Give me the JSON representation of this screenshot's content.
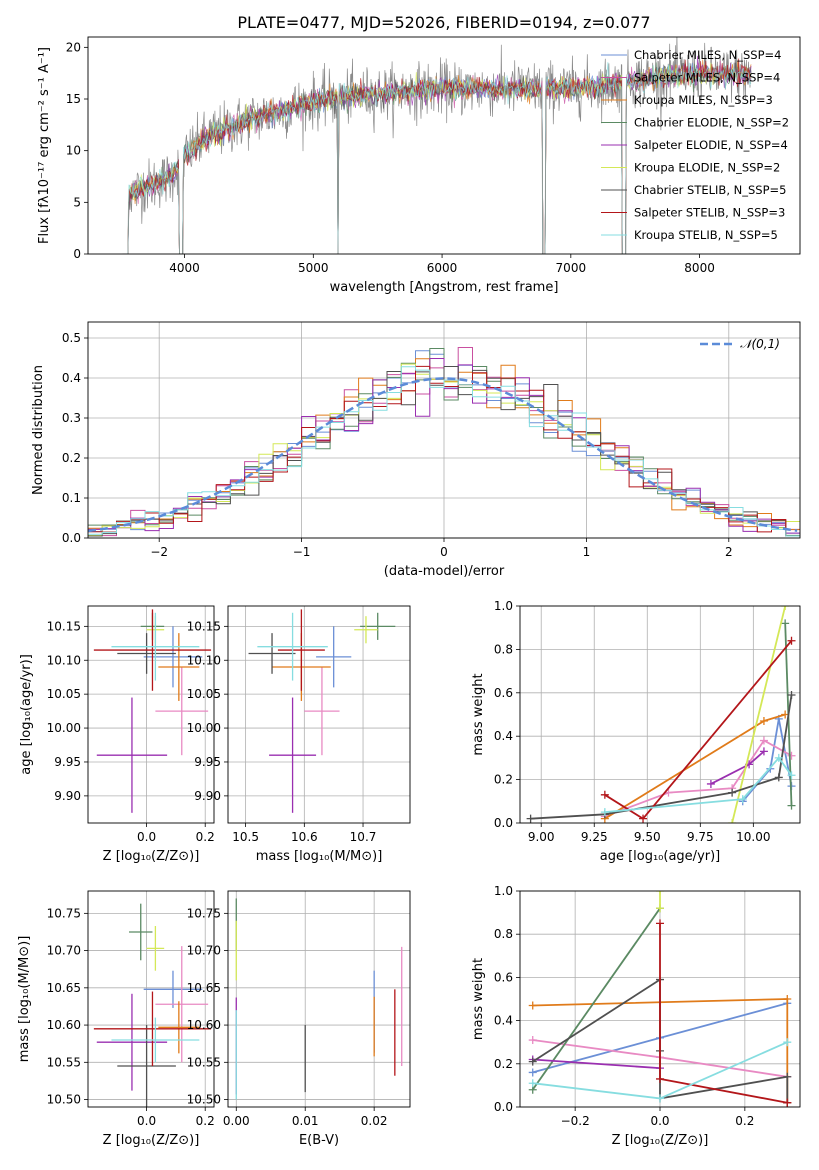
{
  "figure": {
    "title": "PLATE=0477, MJD=52026, FIBERID=0194, z=0.077"
  },
  "chart_data": [
    {
      "id": "spectrum",
      "type": "line",
      "xlabel": "wavelength [Angstrom, rest frame]",
      "ylabel": "Flux [fλ10⁻¹⁷ erg cm⁻² s⁻¹ A⁻¹]",
      "xlim": [
        3250,
        8780
      ],
      "ylim": [
        0,
        21
      ],
      "xticks": [
        4000,
        5000,
        6000,
        7000,
        8000
      ],
      "yticks": [
        0,
        5,
        10,
        15,
        20
      ],
      "legend_position": "top-right",
      "grid": false,
      "series": [
        {
          "name": "Chabrier MILES, N_SSP=4",
          "color": "#6b8fd6"
        },
        {
          "name": "Salpeter MILES, N_SSP=4",
          "color": "#c94fa0"
        },
        {
          "name": "Kroupa MILES, N_SSP=3",
          "color": "#e07b1a"
        },
        {
          "name": "Chabrier ELODIE, N_SSP=2",
          "color": "#5b8a63"
        },
        {
          "name": "Salpeter ELODIE, N_SSP=4",
          "color": "#9a2fb0"
        },
        {
          "name": "Kroupa ELODIE, N_SSP=2",
          "color": "#d4e857"
        },
        {
          "name": "Chabrier STELIB, N_SSP=5",
          "color": "#505050"
        },
        {
          "name": "Salpeter STELIB, N_SSP=3",
          "color": "#b3161a"
        },
        {
          "name": "Kroupa STELIB, N_SSP=5",
          "color": "#86dde0"
        }
      ],
      "continuum_anchors": [
        [
          3520,
          5.5
        ],
        [
          3700,
          6.5
        ],
        [
          3900,
          7.5
        ],
        [
          4000,
          9.5
        ],
        [
          4200,
          11.5
        ],
        [
          4500,
          13.0
        ],
        [
          4800,
          14.0
        ],
        [
          5000,
          14.8
        ],
        [
          5300,
          15.3
        ],
        [
          5600,
          15.6
        ],
        [
          6000,
          16.0
        ],
        [
          6500,
          16.0
        ],
        [
          7000,
          16.0
        ],
        [
          7400,
          16.6
        ],
        [
          7700,
          17.2
        ],
        [
          8000,
          17.4
        ],
        [
          8400,
          17.3
        ]
      ],
      "data_dropouts": [
        [
          3500,
          3560
        ],
        [
          3960,
          3990
        ],
        [
          5190,
          5195
        ],
        [
          6780,
          6800
        ],
        [
          7400,
          7430
        ]
      ]
    },
    {
      "id": "residuals",
      "type": "histogram",
      "xlabel": "(data-model)/error",
      "ylabel": "Normed distribution",
      "xlim": [
        -2.5,
        2.5
      ],
      "ylim": [
        0,
        0.54
      ],
      "xticks": [
        -2,
        -1,
        0,
        1,
        2
      ],
      "yticks": [
        0.0,
        0.1,
        0.2,
        0.3,
        0.4,
        0.5
      ],
      "legend_position": "top-right",
      "legend": [
        "𝒩(0,1)"
      ],
      "grid": true,
      "bin_width": 0.1,
      "reference_curve": {
        "name": "N(0,1)",
        "color": "#5b8bd8",
        "mean": 0,
        "sd": 1
      },
      "histogram_colors": [
        "#6b8fd6",
        "#c94fa0",
        "#e07b1a",
        "#5b8a63",
        "#9a2fb0",
        "#d4e857",
        "#505050",
        "#b3161a",
        "#86dde0"
      ]
    },
    {
      "id": "z-vs-age",
      "type": "errorbar",
      "xlabel": "Z [log₁₀(Z/Z⊙)]",
      "ylabel": "age  [log₁₀(age/yr)]",
      "xlim": [
        -0.2,
        0.23
      ],
      "ylim": [
        9.86,
        10.18
      ],
      "xticks": [
        0.0,
        0.2
      ],
      "yticks": [
        9.9,
        9.95,
        10.0,
        10.05,
        10.1,
        10.15
      ],
      "grid": true,
      "points": [
        {
          "x": 0.09,
          "y": 10.105,
          "xerr": 0.1,
          "yerr": 0.045,
          "color": "#6b8fd6"
        },
        {
          "x": 0.12,
          "y": 10.025,
          "xerr": 0.09,
          "yerr": 0.065,
          "color": "#e88ac3"
        },
        {
          "x": 0.11,
          "y": 10.09,
          "xerr": 0.07,
          "yerr": 0.05,
          "color": "#e07b1a"
        },
        {
          "x": 0.02,
          "y": 10.15,
          "xerr": 0.04,
          "yerr": 0.02,
          "color": "#5b8a63"
        },
        {
          "x": -0.05,
          "y": 9.96,
          "xerr": 0.12,
          "yerr": 0.085,
          "color": "#9a2fb0"
        },
        {
          "x": 0.03,
          "y": 10.145,
          "xerr": 0.03,
          "yerr": 0.02,
          "color": "#d4e857"
        },
        {
          "x": 0.0,
          "y": 10.11,
          "xerr": 0.1,
          "yerr": 0.03,
          "color": "#505050"
        },
        {
          "x": 0.02,
          "y": 10.115,
          "xerr": 0.2,
          "yerr": 0.06,
          "color": "#b3161a"
        },
        {
          "x": 0.03,
          "y": 10.12,
          "xerr": 0.15,
          "yerr": 0.05,
          "color": "#86dde0"
        }
      ]
    },
    {
      "id": "mass-vs-age",
      "type": "errorbar",
      "xlabel": "mass [log₁₀(M/M⊙)]",
      "ylabel": "",
      "xlim": [
        10.47,
        10.78
      ],
      "ylim": [
        9.86,
        10.18
      ],
      "xticks": [
        10.5,
        10.6,
        10.7
      ],
      "yticks": [
        9.9,
        9.95,
        10.0,
        10.05,
        10.1,
        10.15
      ],
      "grid": true,
      "points": [
        {
          "x": 10.65,
          "y": 10.105,
          "xerr": 0.03,
          "yerr": 0.045,
          "color": "#6b8fd6"
        },
        {
          "x": 10.63,
          "y": 10.025,
          "xerr": 0.03,
          "yerr": 0.065,
          "color": "#e88ac3"
        },
        {
          "x": 10.595,
          "y": 10.09,
          "xerr": 0.05,
          "yerr": 0.05,
          "color": "#e07b1a"
        },
        {
          "x": 10.725,
          "y": 10.15,
          "xerr": 0.03,
          "yerr": 0.02,
          "color": "#5b8a63"
        },
        {
          "x": 10.58,
          "y": 9.96,
          "xerr": 0.04,
          "yerr": 0.085,
          "color": "#9a2fb0"
        },
        {
          "x": 10.705,
          "y": 10.145,
          "xerr": 0.02,
          "yerr": 0.02,
          "color": "#d4e857"
        },
        {
          "x": 10.545,
          "y": 10.11,
          "xerr": 0.04,
          "yerr": 0.03,
          "color": "#505050"
        },
        {
          "x": 10.595,
          "y": 10.115,
          "xerr": 0.04,
          "yerr": 0.06,
          "color": "#b3161a"
        },
        {
          "x": 10.58,
          "y": 10.12,
          "xerr": 0.06,
          "yerr": 0.05,
          "color": "#86dde0"
        }
      ]
    },
    {
      "id": "age-vs-weight",
      "type": "line",
      "xlabel": "age  [log₁₀(age/yr)]",
      "ylabel": "mass weight",
      "xlim": [
        8.9,
        10.22
      ],
      "ylim": [
        0,
        1.0
      ],
      "xticks": [
        9.0,
        9.25,
        9.5,
        9.75,
        10.0
      ],
      "yticks": [
        0.0,
        0.2,
        0.4,
        0.6,
        0.8,
        1.0
      ],
      "grid": true,
      "series": [
        {
          "name": "Chabrier MILES",
          "color": "#6b8fd6",
          "x": [
            9.95,
            10.08,
            10.12,
            10.18
          ],
          "y": [
            0.1,
            0.25,
            0.48,
            0.17
          ]
        },
        {
          "name": "Salpeter MILES",
          "color": "#e88ac3",
          "x": [
            9.3,
            9.6,
            9.9,
            10.05,
            10.18
          ],
          "y": [
            0.03,
            0.14,
            0.16,
            0.38,
            0.31
          ]
        },
        {
          "name": "Kroupa MILES",
          "color": "#e07b1a",
          "x": [
            9.3,
            10.05,
            10.15
          ],
          "y": [
            0.02,
            0.47,
            0.5
          ]
        },
        {
          "name": "Chabrier ELODIE",
          "color": "#5b8a63",
          "x": [
            10.15,
            10.18
          ],
          "y": [
            0.92,
            0.08
          ]
        },
        {
          "name": "Salpeter ELODIE",
          "color": "#9a2fb0",
          "x": [
            9.8,
            9.98,
            10.05
          ],
          "y": [
            0.18,
            0.27,
            0.33
          ]
        },
        {
          "name": "Kroupa ELODIE",
          "color": "#d4e857",
          "x": [
            9.9,
            10.15
          ],
          "y": [
            0.0,
            1.0
          ]
        },
        {
          "name": "Chabrier STELIB",
          "color": "#505050",
          "x": [
            8.95,
            9.3,
            9.9,
            10.12,
            10.18
          ],
          "y": [
            0.02,
            0.04,
            0.14,
            0.21,
            0.59
          ]
        },
        {
          "name": "Salpeter STELIB",
          "color": "#b3161a",
          "x": [
            9.3,
            9.48,
            10.18
          ],
          "y": [
            0.13,
            0.02,
            0.84
          ]
        },
        {
          "name": "Kroupa STELIB",
          "color": "#86dde0",
          "x": [
            9.3,
            9.95,
            10.12,
            10.18
          ],
          "y": [
            0.05,
            0.11,
            0.3,
            0.22
          ]
        }
      ]
    },
    {
      "id": "z-vs-mass",
      "type": "errorbar",
      "xlabel": "Z [log₁₀(Z/Z⊙)]",
      "ylabel": "mass [log₁₀(M/M⊙)]",
      "xlim": [
        -0.2,
        0.23
      ],
      "ylim": [
        10.49,
        10.78
      ],
      "xticks": [
        0.0,
        0.2
      ],
      "yticks": [
        10.5,
        10.55,
        10.6,
        10.65,
        10.7,
        10.75
      ],
      "grid": true,
      "points": [
        {
          "x": 0.09,
          "y": 10.648,
          "xerr": 0.1,
          "yerr": 0.025,
          "color": "#6b8fd6"
        },
        {
          "x": 0.12,
          "y": 10.628,
          "xerr": 0.09,
          "yerr": 0.078,
          "color": "#e88ac3"
        },
        {
          "x": 0.11,
          "y": 10.597,
          "xerr": 0.07,
          "yerr": 0.035,
          "color": "#e07b1a"
        },
        {
          "x": -0.02,
          "y": 10.725,
          "xerr": 0.04,
          "yerr": 0.038,
          "color": "#5b8a63"
        },
        {
          "x": -0.05,
          "y": 10.577,
          "xerr": 0.12,
          "yerr": 0.065,
          "color": "#9a2fb0"
        },
        {
          "x": 0.03,
          "y": 10.703,
          "xerr": 0.03,
          "yerr": 0.03,
          "color": "#d4e857"
        },
        {
          "x": 0.0,
          "y": 10.545,
          "xerr": 0.1,
          "yerr": 0.055,
          "color": "#505050"
        },
        {
          "x": 0.02,
          "y": 10.595,
          "xerr": 0.2,
          "yerr": 0.05,
          "color": "#b3161a"
        },
        {
          "x": 0.03,
          "y": 10.58,
          "xerr": 0.15,
          "yerr": 0.03,
          "color": "#86dde0"
        }
      ]
    },
    {
      "id": "ebv-vs-mass",
      "type": "errorbar",
      "xlabel": "E(B-V)",
      "ylabel": "",
      "xlim": [
        -0.0012,
        0.0252
      ],
      "ylim": [
        10.49,
        10.78
      ],
      "xticks": [
        0.0,
        0.01,
        0.02
      ],
      "yticks": [
        10.5,
        10.55,
        10.6,
        10.65,
        10.7,
        10.75
      ],
      "grid": true,
      "points": [
        {
          "x": 0.02,
          "y": 10.618,
          "xerr": 0.0,
          "yerr": 0.055,
          "color": "#6b8fd6"
        },
        {
          "x": 0.024,
          "y": 10.625,
          "xerr": 0.0,
          "yerr": 0.08,
          "color": "#e88ac3"
        },
        {
          "x": 0.02,
          "y": 10.598,
          "xerr": 0.0,
          "yerr": 0.04,
          "color": "#e07b1a"
        },
        {
          "x": 0.0,
          "y": 10.735,
          "xerr": 0.0,
          "yerr": 0.035,
          "color": "#5b8a63"
        },
        {
          "x": 0.0,
          "y": 10.572,
          "xerr": 0.0,
          "yerr": 0.065,
          "color": "#9a2fb0"
        },
        {
          "x": 0.0,
          "y": 10.7,
          "xerr": 0.0,
          "yerr": 0.04,
          "color": "#d4e857"
        },
        {
          "x": 0.01,
          "y": 10.555,
          "xerr": 0.0,
          "yerr": 0.045,
          "color": "#505050"
        },
        {
          "x": 0.023,
          "y": 10.59,
          "xerr": 0.0,
          "yerr": 0.058,
          "color": "#b3161a"
        },
        {
          "x": 0.0,
          "y": 10.56,
          "xerr": 0.0,
          "yerr": 0.06,
          "color": "#86dde0"
        }
      ]
    },
    {
      "id": "z-vs-weight",
      "type": "line",
      "xlabel": "Z [log₁₀(Z/Z⊙)]",
      "ylabel": "mass weight",
      "xlim": [
        -0.33,
        0.33
      ],
      "ylim": [
        0,
        1.0
      ],
      "xticks": [
        -0.2,
        0.0,
        0.2
      ],
      "yticks": [
        0.0,
        0.2,
        0.4,
        0.6,
        0.8,
        1.0
      ],
      "grid": true,
      "series": [
        {
          "name": "Chabrier MILES",
          "color": "#6b8fd6",
          "x": [
            -0.3,
            0.0,
            0.3
          ],
          "y": [
            0.16,
            0.32,
            0.48
          ]
        },
        {
          "name": "Salpeter MILES",
          "color": "#e88ac3",
          "x": [
            -0.3,
            0.0,
            0.3
          ],
          "y": [
            0.31,
            0.23,
            0.14
          ]
        },
        {
          "name": "Kroupa MILES",
          "color": "#e07b1a",
          "x": [
            -0.3,
            0.3,
            0.3
          ],
          "y": [
            0.47,
            0.5,
            0.02
          ]
        },
        {
          "name": "Chabrier ELODIE",
          "color": "#5b8a63",
          "x": [
            -0.3,
            0.0
          ],
          "y": [
            0.08,
            0.92
          ]
        },
        {
          "name": "Salpeter ELODIE",
          "color": "#9a2fb0",
          "x": [
            -0.3,
            0.0
          ],
          "y": [
            0.22,
            0.18
          ]
        },
        {
          "name": "Kroupa ELODIE",
          "color": "#d4e857",
          "x": [
            0.0,
            0.0
          ],
          "y": [
            0.92,
            1.0
          ]
        },
        {
          "name": "Chabrier STELIB",
          "color": "#505050",
          "x": [
            -0.3,
            0.0,
            0.0,
            0.0,
            0.3,
            0.3
          ],
          "y": [
            0.21,
            0.59,
            0.26,
            0.04,
            0.14,
            0.02
          ]
        },
        {
          "name": "Salpeter STELIB",
          "color": "#b3161a",
          "x": [
            0.0,
            0.0,
            0.3
          ],
          "y": [
            0.85,
            0.13,
            0.02
          ]
        },
        {
          "name": "Kroupa STELIB",
          "color": "#86dde0",
          "x": [
            -0.3,
            0.0,
            0.3
          ],
          "y": [
            0.11,
            0.04,
            0.3
          ]
        }
      ]
    }
  ]
}
